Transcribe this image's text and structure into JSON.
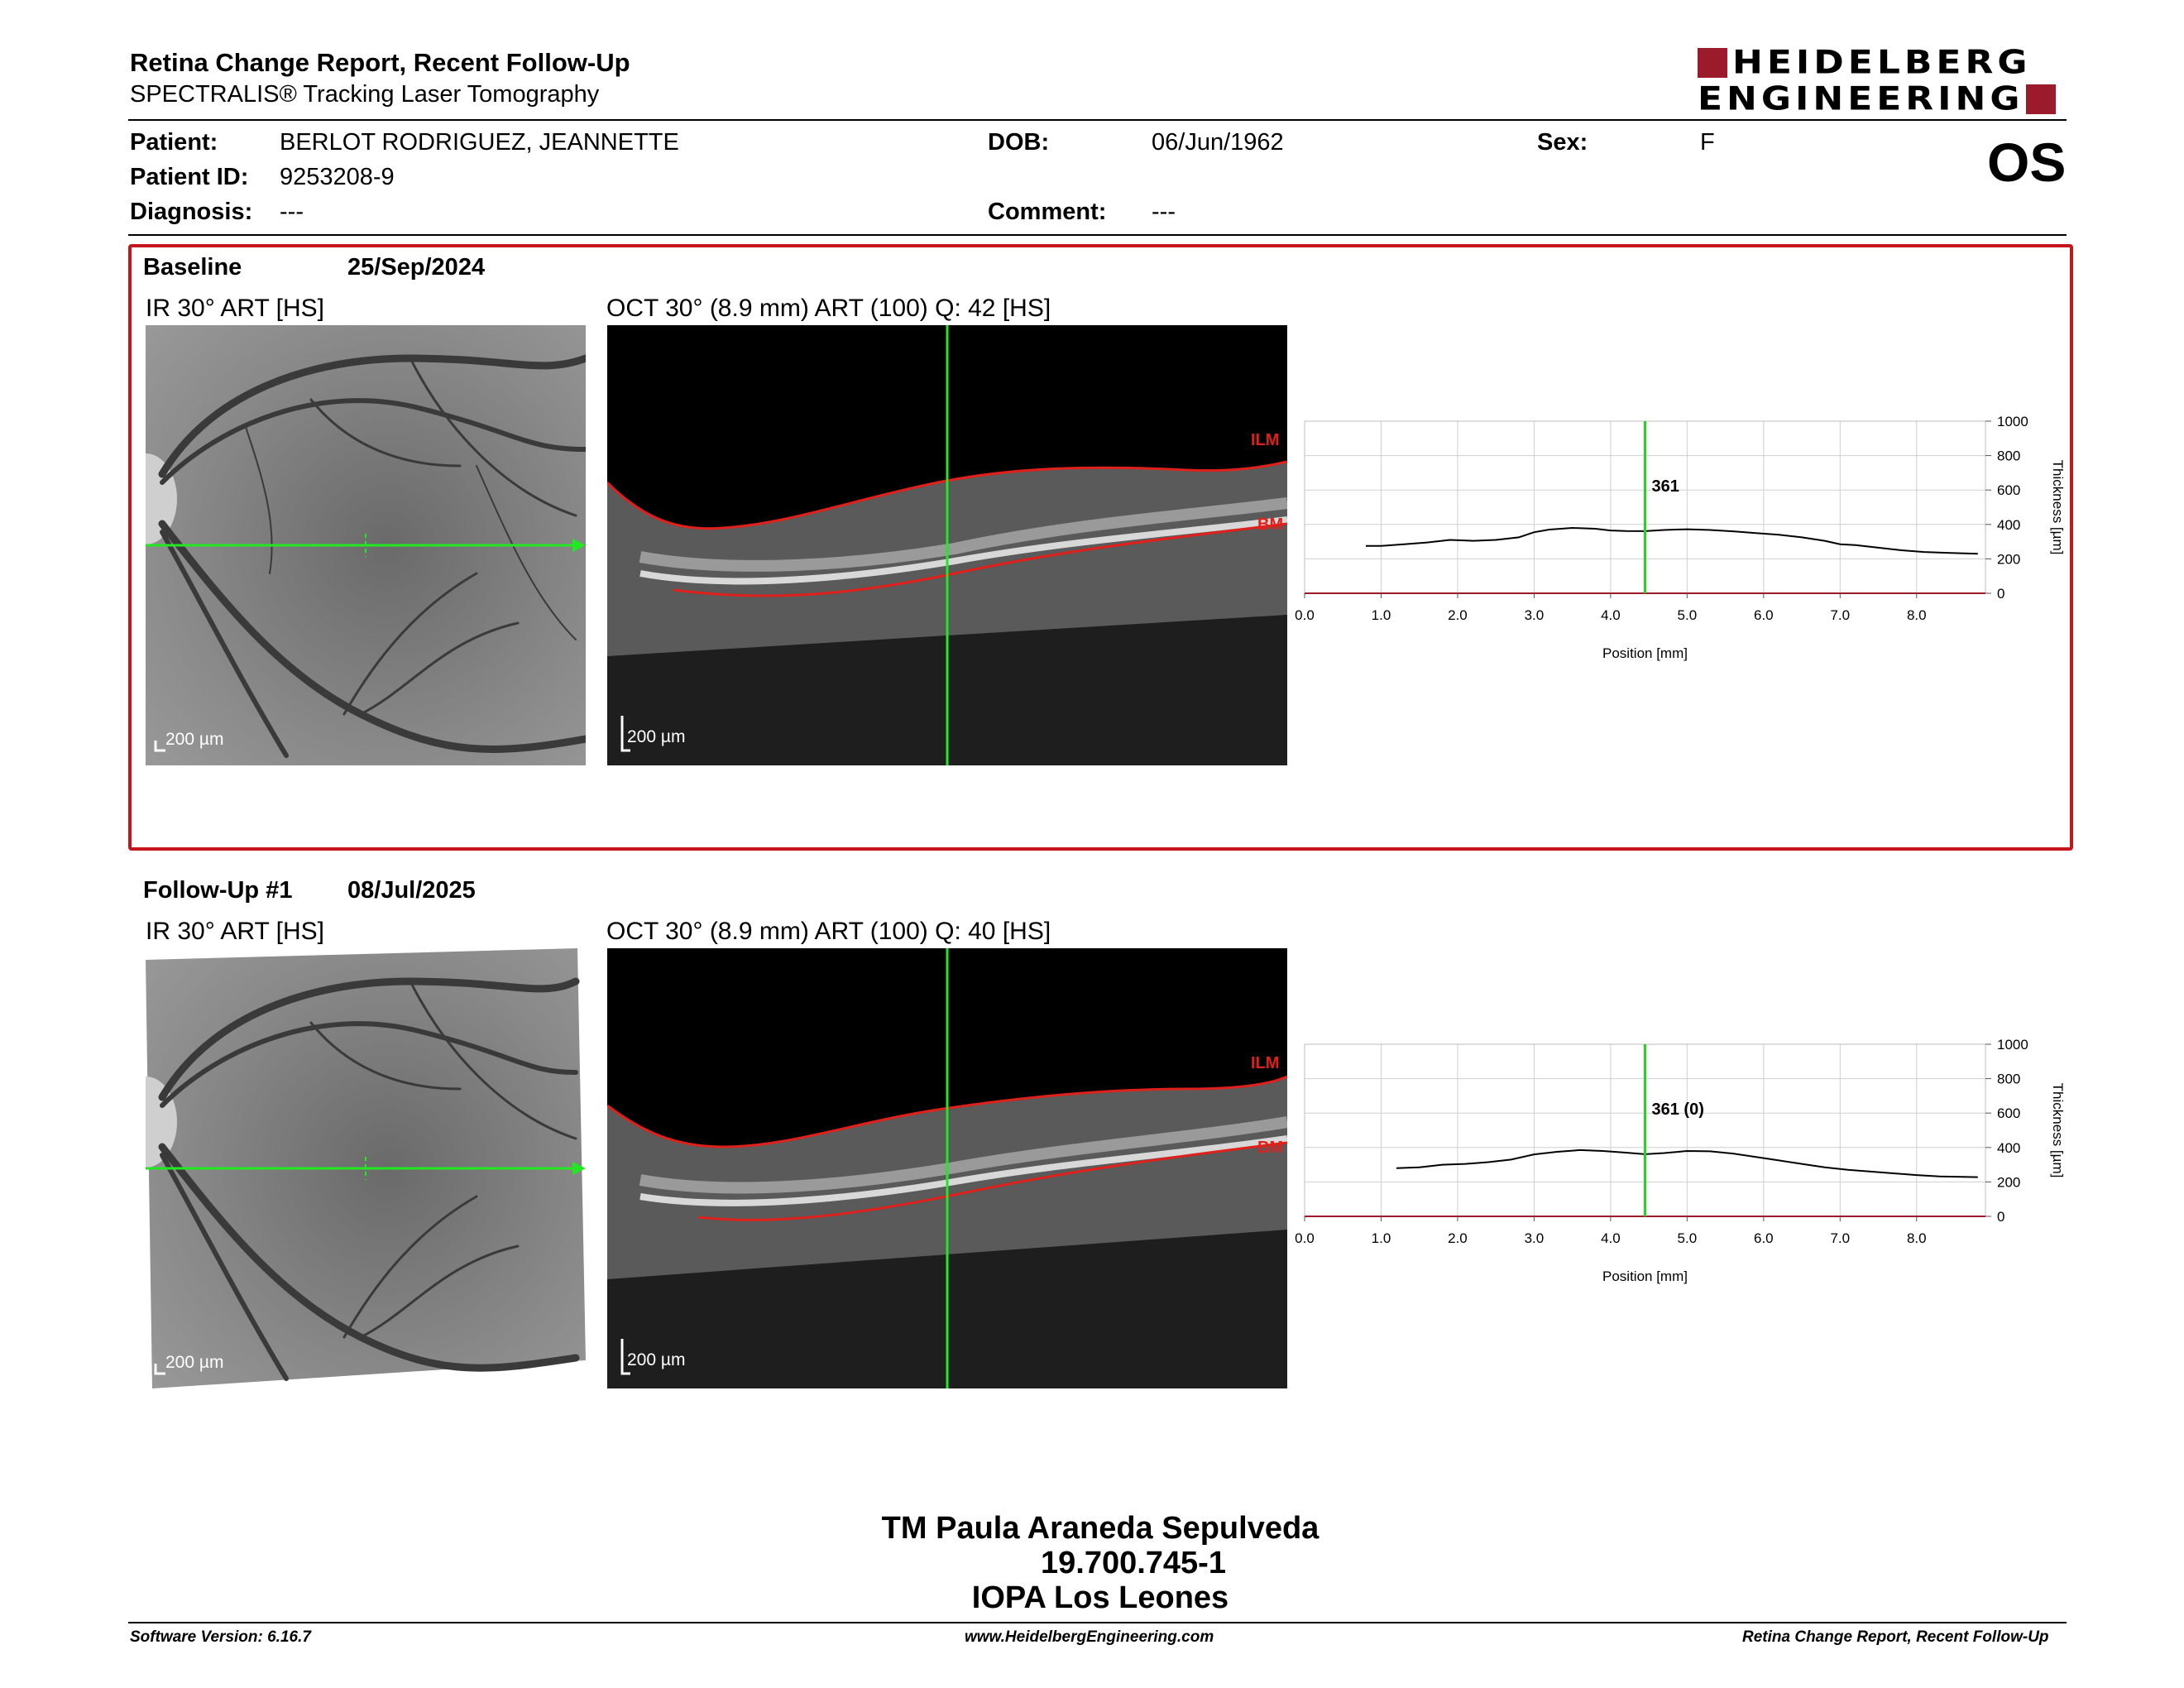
{
  "header": {
    "title": "Retina Change Report, Recent Follow-Up",
    "subtitle": "SPECTRALIS® Tracking Laser Tomography",
    "logo_line1": "HEIDELBERG",
    "logo_line2": "ENGINEERING",
    "eye": "OS"
  },
  "patient": {
    "patient_label": "Patient:",
    "patient_value": "BERLOT RODRIGUEZ, JEANNETTE",
    "id_label": "Patient ID:",
    "id_value": "9253208-9",
    "diagnosis_label": "Diagnosis:",
    "diagnosis_value": "---",
    "dob_label": "DOB:",
    "dob_value": "06/Jun/1962",
    "comment_label": "Comment:",
    "comment_value": "---",
    "sex_label": "Sex:",
    "sex_value": "F"
  },
  "exams": [
    {
      "label": "Baseline",
      "date": "25/Sep/2024",
      "ir_caption": "IR 30° ART [HS]",
      "oct_caption": "OCT 30° (8.9 mm) ART (100) Q: 42 [HS]",
      "ir_scale": "200 µm",
      "oct_scale": "200 µm",
      "ilm": "ILM",
      "bm": "BM",
      "cursor_value": "361"
    },
    {
      "label": "Follow-Up #1",
      "date": "08/Jul/2025",
      "ir_caption": "IR 30° ART [HS]",
      "oct_caption": "OCT 30° (8.9 mm) ART (100) Q: 40 [HS]",
      "ir_scale": "200 µm",
      "oct_scale": "200 µm",
      "ilm": "ILM",
      "bm": "BM",
      "cursor_value": "361 (0)"
    }
  ],
  "colors": {
    "accent_red": "#c4161c",
    "logo_red": "#9b1b2c",
    "scan_green": "#22e822",
    "cursor_green": "#1ed81e"
  },
  "chart_data": [
    {
      "type": "line",
      "title": "",
      "xlabel": "Position [mm]",
      "ylabel": "Thickness [µm]",
      "xlim": [
        0,
        8.9
      ],
      "ylim": [
        0,
        1000
      ],
      "xticks": [
        "0.0",
        "1.0",
        "2.0",
        "3.0",
        "4.0",
        "5.0",
        "6.0",
        "7.0",
        "8.0"
      ],
      "yticks": [
        "0",
        "200",
        "400",
        "600",
        "800",
        "1000"
      ],
      "grid": true,
      "cursor_x": 4.45,
      "series": [
        {
          "x": [
            0.8,
            1.0,
            1.3,
            1.6,
            1.9,
            2.2,
            2.5,
            2.8,
            3.0,
            3.2,
            3.5,
            3.8,
            4.0,
            4.2,
            4.45,
            4.7,
            5.0,
            5.3,
            5.6,
            5.9,
            6.2,
            6.5,
            6.8,
            7.0,
            7.2,
            7.5,
            7.8,
            8.1,
            8.4,
            8.8
          ],
          "y": [
            275,
            275,
            285,
            295,
            310,
            305,
            310,
            325,
            355,
            370,
            380,
            375,
            365,
            362,
            361,
            368,
            372,
            368,
            360,
            350,
            340,
            325,
            305,
            285,
            280,
            265,
            250,
            240,
            235,
            230
          ]
        }
      ]
    },
    {
      "type": "line",
      "title": "",
      "xlabel": "Position [mm]",
      "ylabel": "Thickness [µm]",
      "xlim": [
        0,
        8.9
      ],
      "ylim": [
        0,
        1000
      ],
      "xticks": [
        "0.0",
        "1.0",
        "2.0",
        "3.0",
        "4.0",
        "5.0",
        "6.0",
        "7.0",
        "8.0"
      ],
      "yticks": [
        "0",
        "200",
        "400",
        "600",
        "800",
        "1000"
      ],
      "grid": true,
      "cursor_x": 4.45,
      "series": [
        {
          "x": [
            1.2,
            1.5,
            1.8,
            2.1,
            2.4,
            2.7,
            3.0,
            3.3,
            3.6,
            3.9,
            4.2,
            4.45,
            4.7,
            5.0,
            5.3,
            5.6,
            5.9,
            6.2,
            6.5,
            6.8,
            7.1,
            7.4,
            7.7,
            8.0,
            8.3,
            8.8
          ],
          "y": [
            280,
            285,
            300,
            305,
            315,
            330,
            360,
            375,
            385,
            380,
            370,
            361,
            368,
            380,
            378,
            365,
            345,
            325,
            305,
            285,
            270,
            260,
            250,
            240,
            232,
            228
          ]
        }
      ]
    }
  ],
  "signature": {
    "name": "TM Paula Araneda Sepulveda",
    "rut": "19.700.745-1",
    "institution": "IOPA Los Leones"
  },
  "footer": {
    "left": "Software Version: 6.16.7",
    "center": "www.HeidelbergEngineering.com",
    "right": "Retina Change Report, Recent Follow-Up"
  }
}
